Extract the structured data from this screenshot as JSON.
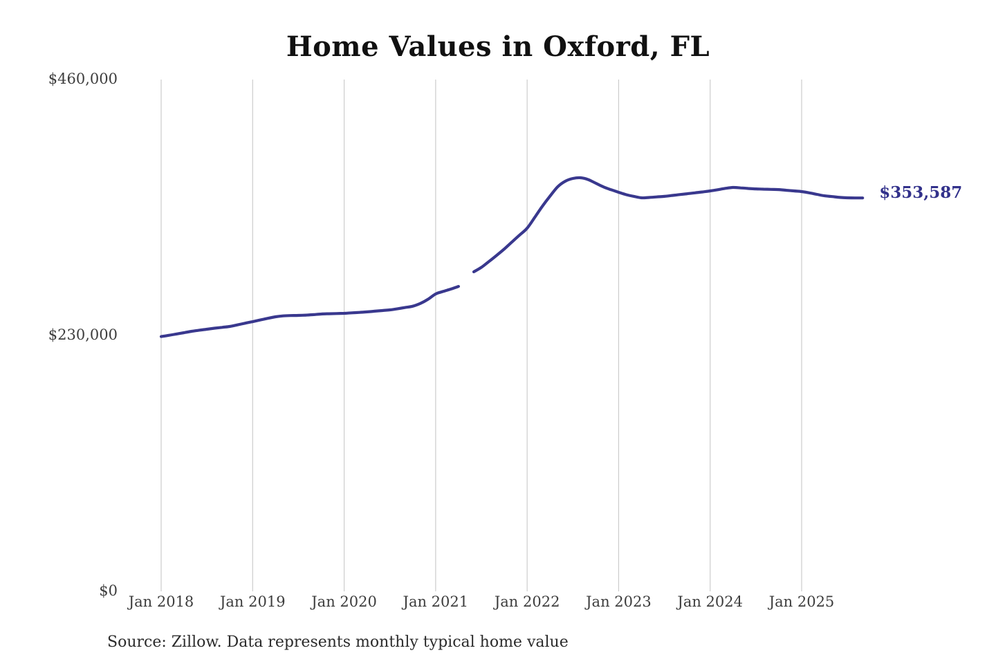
{
  "chart_data": {
    "type": "line",
    "title": "Home Values in Oxford, FL",
    "source": "Source: Zillow. Data represents monthly typical home value",
    "latest_label": "$353,587",
    "latest_value": 353587,
    "ylim": [
      0,
      460000
    ],
    "grid": "vertical-only",
    "legend": "none",
    "colors": {
      "line": "#39388e",
      "latest_label": "#32318b",
      "gridline": "#cccccc",
      "tick_text": "#3d3d3d"
    },
    "y_ticks": [
      {
        "value": 0,
        "label": "$0"
      },
      {
        "value": 230000,
        "label": "$230,000"
      },
      {
        "value": 460000,
        "label": "$460,000"
      }
    ],
    "x_ticks": [
      {
        "month_index": 0,
        "label": "Jan 2018"
      },
      {
        "month_index": 12,
        "label": "Jan 2019"
      },
      {
        "month_index": 24,
        "label": "Jan 2020"
      },
      {
        "month_index": 36,
        "label": "Jan 2021"
      },
      {
        "month_index": 48,
        "label": "Jan 2022"
      },
      {
        "month_index": 60,
        "label": "Jan 2023"
      },
      {
        "month_index": 72,
        "label": "Jan 2024"
      },
      {
        "month_index": 84,
        "label": "Jan 2025"
      }
    ],
    "series": [
      {
        "name": "Monthly typical home value",
        "months": [
          "2018-01",
          "2018-02",
          "2018-03",
          "2018-04",
          "2018-05",
          "2018-06",
          "2018-07",
          "2018-08",
          "2018-09",
          "2018-10",
          "2018-11",
          "2018-12",
          "2019-01",
          "2019-02",
          "2019-03",
          "2019-04",
          "2019-05",
          "2019-06",
          "2019-07",
          "2019-08",
          "2019-09",
          "2019-10",
          "2019-11",
          "2019-12",
          "2020-01",
          "2020-02",
          "2020-03",
          "2020-04",
          "2020-05",
          "2020-06",
          "2020-07",
          "2020-08",
          "2020-09",
          "2020-10",
          "2020-11",
          "2020-12",
          "2021-01",
          "2021-02",
          "2021-03",
          "2021-04",
          "2021-05",
          "2021-06",
          "2021-07",
          "2021-08",
          "2021-09",
          "2021-10",
          "2021-11",
          "2021-12",
          "2022-01",
          "2022-02",
          "2022-03",
          "2022-04",
          "2022-05",
          "2022-06",
          "2022-07",
          "2022-08",
          "2022-09",
          "2022-10",
          "2022-11",
          "2022-12",
          "2023-01",
          "2023-02",
          "2023-03",
          "2023-04",
          "2023-05",
          "2023-06",
          "2023-07",
          "2023-08",
          "2023-09",
          "2023-10",
          "2023-11",
          "2023-12",
          "2024-01",
          "2024-02",
          "2024-03",
          "2024-04",
          "2024-05",
          "2024-06",
          "2024-07",
          "2024-08",
          "2024-09",
          "2024-10",
          "2024-11",
          "2024-12",
          "2025-01",
          "2025-02",
          "2025-03",
          "2025-04",
          "2025-05",
          "2025-06",
          "2025-07",
          "2025-08",
          "2025-09"
        ],
        "values": [
          229000,
          230100,
          231300,
          232500,
          233700,
          234700,
          235600,
          236500,
          237300,
          238100,
          239500,
          241000,
          242400,
          243900,
          245400,
          246800,
          247600,
          247900,
          248000,
          248300,
          248700,
          249300,
          249500,
          249700,
          249900,
          250300,
          250700,
          251200,
          251800,
          252400,
          253000,
          254000,
          255100,
          256300,
          258800,
          262500,
          267300,
          269600,
          271700,
          274100,
          null,
          287200,
          291200,
          296500,
          302000,
          307700,
          314000,
          320200,
          326400,
          336200,
          346200,
          355200,
          363600,
          368600,
          371100,
          371700,
          370100,
          366800,
          363500,
          361000,
          358700,
          356500,
          355000,
          353700,
          354000,
          354500,
          355000,
          355800,
          356600,
          357400,
          358200,
          359000,
          359900,
          361000,
          362200,
          363000,
          362600,
          362100,
          361700,
          361500,
          361300,
          361100,
          360500,
          359900,
          359300,
          358200,
          356800,
          355500,
          354800,
          354100,
          353700,
          353600,
          353587
        ]
      }
    ]
  }
}
